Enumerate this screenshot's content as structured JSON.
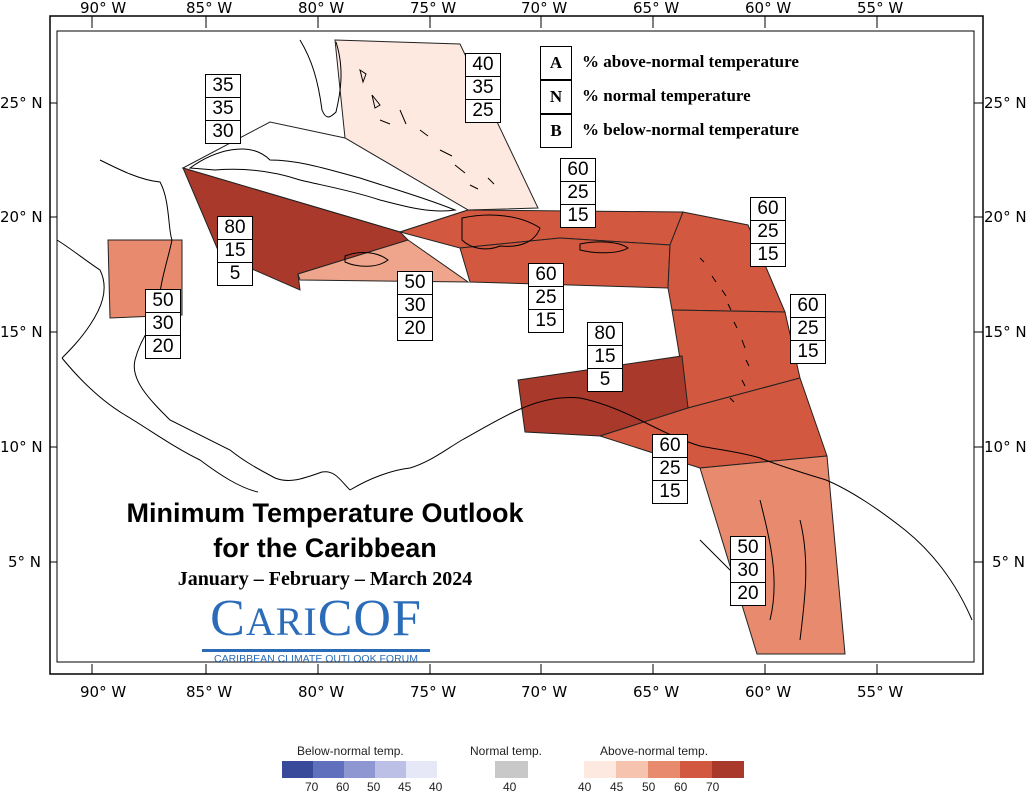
{
  "map": {
    "title_line1": "Minimum Temperature Outlook",
    "title_line2": "for the Caribbean",
    "period": "January – February – March 2024",
    "longitude_labels": [
      "90° W",
      "85° W",
      "80° W",
      "75° W",
      "70° W",
      "65° W",
      "60° W",
      "55° W"
    ],
    "latitude_labels": [
      "25° N",
      "20° N",
      "15° N",
      "10° N",
      "5° N"
    ]
  },
  "key": [
    {
      "letter": "A",
      "text": "% above-normal temperature"
    },
    {
      "letter": "N",
      "text": "% normal temperature"
    },
    {
      "letter": "B",
      "text": "% below-normal temperature"
    }
  ],
  "regions": [
    {
      "name": "bahamas",
      "above": "40",
      "normal": "35",
      "below": "25",
      "color": "#fde9df"
    },
    {
      "name": "western-cuba",
      "above": "35",
      "normal": "35",
      "below": "30",
      "color": "#ffffff"
    },
    {
      "name": "cayman-jamaica-west",
      "above": "80",
      "normal": "15",
      "below": "5",
      "color": "#a9392a"
    },
    {
      "name": "belize",
      "above": "50",
      "normal": "30",
      "below": "20",
      "color": "#e88a6e"
    },
    {
      "name": "jamaica",
      "above": "50",
      "normal": "30",
      "below": "20",
      "color": "#efa58b"
    },
    {
      "name": "hispaniola-pr",
      "above": "60",
      "normal": "25",
      "below": "15",
      "color": "#d2583f"
    },
    {
      "name": "greater-antilles-south",
      "above": "60",
      "normal": "25",
      "below": "15",
      "color": "#d2583f"
    },
    {
      "name": "leeward-islands",
      "above": "60",
      "normal": "25",
      "below": "15",
      "color": "#d2583f"
    },
    {
      "name": "windward-islands",
      "above": "60",
      "normal": "25",
      "below": "15",
      "color": "#d2583f"
    },
    {
      "name": "abc-islands",
      "above": "80",
      "normal": "15",
      "below": "5",
      "color": "#a9392a"
    },
    {
      "name": "trinidad",
      "above": "60",
      "normal": "25",
      "below": "15",
      "color": "#d2583f"
    },
    {
      "name": "guianas",
      "above": "50",
      "normal": "30",
      "below": "20",
      "color": "#e88a6e"
    }
  ],
  "logo": {
    "main_cap1": "C",
    "main_small": "ARI",
    "main_rest": "COF",
    "subtitle": "CARIBBEAN CLIMATE OUTLOOK FORUM"
  },
  "legend": {
    "below_title": "Below-normal temp.",
    "normal_title": "Normal temp.",
    "above_title": "Above-normal temp.",
    "below_colors": [
      "#3a4a9a",
      "#6070bd",
      "#8f97d2",
      "#bcc0e6",
      "#e6e8f7"
    ],
    "below_ticks": [
      "70",
      "60",
      "50",
      "45",
      "40"
    ],
    "normal_color": "#c8c8c8",
    "normal_ticks": [
      "40"
    ],
    "above_colors": [
      "#fde9df",
      "#f6c4ae",
      "#e88a6e",
      "#d2583f",
      "#a9392a"
    ],
    "above_ticks": [
      "40",
      "45",
      "50",
      "60",
      "70"
    ]
  }
}
